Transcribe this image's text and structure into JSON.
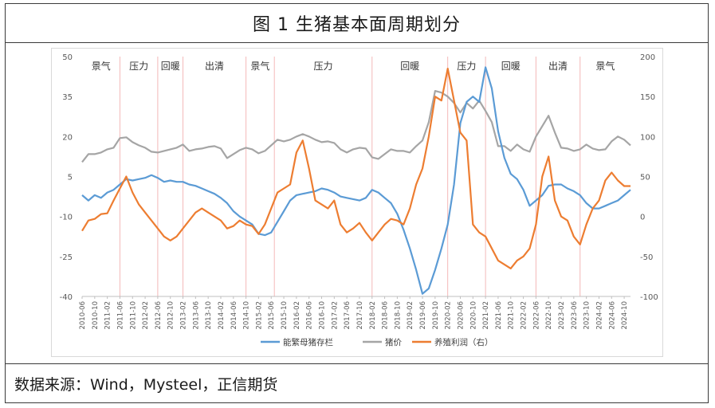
{
  "title": "图 1 生猪基本面周期划分",
  "source": "数据来源：Wind，Mysteel，正信期货",
  "colors": {
    "sow": "#5B9BD5",
    "price": "#A5A5A5",
    "profit": "#ED7D31",
    "period_line": "#F4B8B8",
    "axis_text": "#595959"
  },
  "chart_data": {
    "type": "line",
    "title": "",
    "xlabel": "",
    "ylabel": "",
    "ylim": [
      -40,
      50
    ],
    "y2lim": [
      -100,
      200
    ],
    "y_ticks": [
      50,
      35,
      20,
      5,
      -10,
      -25,
      -40
    ],
    "y2_ticks": [
      200,
      150,
      100,
      50,
      0,
      -50,
      -100
    ],
    "x_tick_labels": [
      "2010-06",
      "2010-10",
      "2011-02",
      "2011-06",
      "2011-10",
      "2012-02",
      "2012-06",
      "2012-10",
      "2013-02",
      "2013-06",
      "2013-10",
      "2014-02",
      "2014-06",
      "2014-10",
      "2015-02",
      "2015-06",
      "2015-10",
      "2016-02",
      "2016-06",
      "2016-10",
      "2017-02",
      "2017-06",
      "2017-10",
      "2018-02",
      "2018-06",
      "2018-10",
      "2019-02",
      "2019-06",
      "2019-10",
      "2020-02",
      "2020-06",
      "2020-10",
      "2021-02",
      "2021-06",
      "2021-10",
      "2022-02",
      "2022-06",
      "2022-10",
      "2023-02",
      "2023-06",
      "2023-10",
      "2024-02",
      "2024-06",
      "2024-10"
    ],
    "legend_position": "bottom",
    "period_boundaries": [
      "2011-06",
      "2012-06",
      "2013-02",
      "2014-10",
      "2015-07",
      "2018-02",
      "2020-02",
      "2021-02",
      "2022-06",
      "2023-08"
    ],
    "periods": [
      "景气",
      "压力",
      "回暖",
      "出清",
      "景气",
      "压力",
      "回暖",
      "压力",
      "回暖",
      "出清",
      "景气"
    ],
    "series": [
      {
        "name": "能繁母猪存栏",
        "axis": "left",
        "points": [
          [
            "2010-06",
            -2
          ],
          [
            "2010-08",
            -4
          ],
          [
            "2010-10",
            -2
          ],
          [
            "2010-12",
            -3
          ],
          [
            "2011-02",
            -1
          ],
          [
            "2011-04",
            0
          ],
          [
            "2011-06",
            2
          ],
          [
            "2011-08",
            4
          ],
          [
            "2011-10",
            3.5
          ],
          [
            "2011-12",
            4
          ],
          [
            "2012-02",
            4.5
          ],
          [
            "2012-04",
            5.5
          ],
          [
            "2012-06",
            4.5
          ],
          [
            "2012-08",
            3
          ],
          [
            "2012-10",
            3.5
          ],
          [
            "2012-12",
            3
          ],
          [
            "2013-02",
            3
          ],
          [
            "2013-04",
            2
          ],
          [
            "2013-06",
            1.5
          ],
          [
            "2013-08",
            0.5
          ],
          [
            "2013-10",
            -0.5
          ],
          [
            "2013-12",
            -1.5
          ],
          [
            "2014-02",
            -3
          ],
          [
            "2014-04",
            -5
          ],
          [
            "2014-06",
            -8
          ],
          [
            "2014-08",
            -10
          ],
          [
            "2014-10",
            -11.5
          ],
          [
            "2014-12",
            -13
          ],
          [
            "2015-02",
            -16.5
          ],
          [
            "2015-04",
            -17
          ],
          [
            "2015-06",
            -16
          ],
          [
            "2015-08",
            -12
          ],
          [
            "2015-10",
            -8
          ],
          [
            "2015-12",
            -4
          ],
          [
            "2016-02",
            -2
          ],
          [
            "2016-04",
            -1.5
          ],
          [
            "2016-06",
            -1
          ],
          [
            "2016-08",
            -0.5
          ],
          [
            "2016-10",
            0.5
          ],
          [
            "2016-12",
            0
          ],
          [
            "2017-02",
            -1
          ],
          [
            "2017-04",
            -2.5
          ],
          [
            "2017-06",
            -3
          ],
          [
            "2017-08",
            -3.5
          ],
          [
            "2017-10",
            -4
          ],
          [
            "2017-12",
            -3
          ],
          [
            "2018-02",
            0
          ],
          [
            "2018-04",
            -1
          ],
          [
            "2018-06",
            -3
          ],
          [
            "2018-08",
            -5
          ],
          [
            "2018-10",
            -9
          ],
          [
            "2018-12",
            -15
          ],
          [
            "2019-02",
            -22
          ],
          [
            "2019-04",
            -30
          ],
          [
            "2019-06",
            -39
          ],
          [
            "2019-08",
            -37
          ],
          [
            "2019-10",
            -30
          ],
          [
            "2019-12",
            -22
          ],
          [
            "2020-02",
            -13
          ],
          [
            "2020-04",
            2
          ],
          [
            "2020-06",
            25
          ],
          [
            "2020-08",
            33
          ],
          [
            "2020-10",
            35
          ],
          [
            "2020-12",
            33
          ],
          [
            "2021-02",
            46
          ],
          [
            "2021-04",
            38
          ],
          [
            "2021-06",
            22
          ],
          [
            "2021-08",
            12
          ],
          [
            "2021-10",
            6
          ],
          [
            "2021-12",
            4
          ],
          [
            "2022-02",
            0
          ],
          [
            "2022-04",
            -6
          ],
          [
            "2022-06",
            -4
          ],
          [
            "2022-08",
            -2
          ],
          [
            "2022-10",
            1.5
          ],
          [
            "2022-12",
            2
          ],
          [
            "2023-02",
            2
          ],
          [
            "2023-04",
            0.5
          ],
          [
            "2023-06",
            -0.5
          ],
          [
            "2023-08",
            -2
          ],
          [
            "2023-10",
            -5
          ],
          [
            "2023-12",
            -7
          ],
          [
            "2024-02",
            -7
          ],
          [
            "2024-04",
            -6
          ],
          [
            "2024-06",
            -5
          ],
          [
            "2024-08",
            -4
          ],
          [
            "2024-10",
            -2
          ],
          [
            "2024-12",
            0
          ]
        ]
      },
      {
        "name": "猪价",
        "axis": "right",
        "points": [
          [
            "2010-06",
            68
          ],
          [
            "2010-08",
            78
          ],
          [
            "2010-10",
            78
          ],
          [
            "2010-12",
            80
          ],
          [
            "2011-02",
            84
          ],
          [
            "2011-04",
            86
          ],
          [
            "2011-06",
            98
          ],
          [
            "2011-08",
            99
          ],
          [
            "2011-10",
            93
          ],
          [
            "2011-12",
            89
          ],
          [
            "2012-02",
            86
          ],
          [
            "2012-04",
            81
          ],
          [
            "2012-06",
            80
          ],
          [
            "2012-08",
            82
          ],
          [
            "2012-10",
            84
          ],
          [
            "2012-12",
            86
          ],
          [
            "2013-02",
            90
          ],
          [
            "2013-04",
            82
          ],
          [
            "2013-06",
            84
          ],
          [
            "2013-08",
            85
          ],
          [
            "2013-10",
            87
          ],
          [
            "2013-12",
            88
          ],
          [
            "2014-02",
            85
          ],
          [
            "2014-04",
            73
          ],
          [
            "2014-06",
            78
          ],
          [
            "2014-08",
            83
          ],
          [
            "2014-10",
            86
          ],
          [
            "2014-12",
            84
          ],
          [
            "2015-02",
            79
          ],
          [
            "2015-04",
            82
          ],
          [
            "2015-06",
            89
          ],
          [
            "2015-08",
            96
          ],
          [
            "2015-10",
            94
          ],
          [
            "2015-12",
            96
          ],
          [
            "2016-02",
            100
          ],
          [
            "2016-04",
            103
          ],
          [
            "2016-06",
            100
          ],
          [
            "2016-08",
            96
          ],
          [
            "2016-10",
            93
          ],
          [
            "2016-12",
            94
          ],
          [
            "2017-02",
            92
          ],
          [
            "2017-04",
            84
          ],
          [
            "2017-06",
            80
          ],
          [
            "2017-08",
            84
          ],
          [
            "2017-10",
            86
          ],
          [
            "2017-12",
            85
          ],
          [
            "2018-02",
            74
          ],
          [
            "2018-04",
            72
          ],
          [
            "2018-06",
            78
          ],
          [
            "2018-08",
            84
          ],
          [
            "2018-10",
            82
          ],
          [
            "2018-12",
            82
          ],
          [
            "2019-02",
            80
          ],
          [
            "2019-04",
            88
          ],
          [
            "2019-06",
            95
          ],
          [
            "2019-08",
            118
          ],
          [
            "2019-10",
            157
          ],
          [
            "2019-12",
            155
          ],
          [
            "2020-02",
            150
          ],
          [
            "2020-04",
            142
          ],
          [
            "2020-06",
            130
          ],
          [
            "2020-08",
            142
          ],
          [
            "2020-10",
            135
          ],
          [
            "2020-12",
            145
          ],
          [
            "2021-02",
            132
          ],
          [
            "2021-04",
            118
          ],
          [
            "2021-06",
            88
          ],
          [
            "2021-08",
            88
          ],
          [
            "2021-10",
            82
          ],
          [
            "2021-12",
            90
          ],
          [
            "2022-02",
            84
          ],
          [
            "2022-04",
            81
          ],
          [
            "2022-06",
            100
          ],
          [
            "2022-08",
            113
          ],
          [
            "2022-10",
            126
          ],
          [
            "2022-12",
            105
          ],
          [
            "2023-02",
            86
          ],
          [
            "2023-04",
            85
          ],
          [
            "2023-06",
            82
          ],
          [
            "2023-08",
            84
          ],
          [
            "2023-10",
            90
          ],
          [
            "2023-12",
            85
          ],
          [
            "2024-02",
            83
          ],
          [
            "2024-04",
            84
          ],
          [
            "2024-06",
            94
          ],
          [
            "2024-08",
            100
          ],
          [
            "2024-10",
            96
          ],
          [
            "2024-12",
            89
          ]
        ]
      },
      {
        "name": "养殖利润（右）",
        "axis": "right",
        "points": [
          [
            "2010-06",
            -18
          ],
          [
            "2010-08",
            -5
          ],
          [
            "2010-10",
            -3
          ],
          [
            "2010-12",
            3
          ],
          [
            "2011-02",
            4
          ],
          [
            "2011-04",
            20
          ],
          [
            "2011-06",
            35
          ],
          [
            "2011-08",
            50
          ],
          [
            "2011-10",
            30
          ],
          [
            "2011-12",
            15
          ],
          [
            "2012-02",
            5
          ],
          [
            "2012-04",
            -5
          ],
          [
            "2012-06",
            -15
          ],
          [
            "2012-08",
            -25
          ],
          [
            "2012-10",
            -30
          ],
          [
            "2012-12",
            -25
          ],
          [
            "2013-02",
            -15
          ],
          [
            "2013-04",
            -5
          ],
          [
            "2013-06",
            5
          ],
          [
            "2013-08",
            10
          ],
          [
            "2013-10",
            5
          ],
          [
            "2013-12",
            0
          ],
          [
            "2014-02",
            -5
          ],
          [
            "2014-04",
            -15
          ],
          [
            "2014-06",
            -12
          ],
          [
            "2014-08",
            -5
          ],
          [
            "2014-10",
            -10
          ],
          [
            "2014-12",
            -12
          ],
          [
            "2015-02",
            -22
          ],
          [
            "2015-04",
            -10
          ],
          [
            "2015-06",
            10
          ],
          [
            "2015-08",
            30
          ],
          [
            "2015-10",
            35
          ],
          [
            "2015-12",
            40
          ],
          [
            "2016-02",
            80
          ],
          [
            "2016-04",
            95
          ],
          [
            "2016-06",
            60
          ],
          [
            "2016-08",
            20
          ],
          [
            "2016-10",
            15
          ],
          [
            "2016-12",
            10
          ],
          [
            "2017-02",
            20
          ],
          [
            "2017-04",
            -10
          ],
          [
            "2017-06",
            -20
          ],
          [
            "2017-08",
            -15
          ],
          [
            "2017-10",
            -8
          ],
          [
            "2017-12",
            -20
          ],
          [
            "2018-02",
            -30
          ],
          [
            "2018-04",
            -20
          ],
          [
            "2018-06",
            -10
          ],
          [
            "2018-08",
            -3
          ],
          [
            "2018-10",
            -5
          ],
          [
            "2018-12",
            -10
          ],
          [
            "2019-02",
            10
          ],
          [
            "2019-04",
            40
          ],
          [
            "2019-06",
            60
          ],
          [
            "2019-08",
            100
          ],
          [
            "2019-10",
            150
          ],
          [
            "2019-12",
            145
          ],
          [
            "2020-02",
            185
          ],
          [
            "2020-04",
            145
          ],
          [
            "2020-06",
            105
          ],
          [
            "2020-08",
            95
          ],
          [
            "2020-10",
            -10
          ],
          [
            "2020-12",
            -20
          ],
          [
            "2021-02",
            -25
          ],
          [
            "2021-04",
            -40
          ],
          [
            "2021-06",
            -55
          ],
          [
            "2021-08",
            -60
          ],
          [
            "2021-10",
            -65
          ],
          [
            "2021-12",
            -55
          ],
          [
            "2022-02",
            -50
          ],
          [
            "2022-04",
            -40
          ],
          [
            "2022-06",
            -10
          ],
          [
            "2022-08",
            50
          ],
          [
            "2022-10",
            75
          ],
          [
            "2022-12",
            20
          ],
          [
            "2023-02",
            0
          ],
          [
            "2023-04",
            -5
          ],
          [
            "2023-06",
            -25
          ],
          [
            "2023-08",
            -35
          ],
          [
            "2023-10",
            -10
          ],
          [
            "2023-12",
            10
          ],
          [
            "2024-02",
            20
          ],
          [
            "2024-04",
            45
          ],
          [
            "2024-06",
            55
          ],
          [
            "2024-08",
            45
          ],
          [
            "2024-10",
            38
          ],
          [
            "2024-12",
            38
          ]
        ]
      }
    ]
  }
}
